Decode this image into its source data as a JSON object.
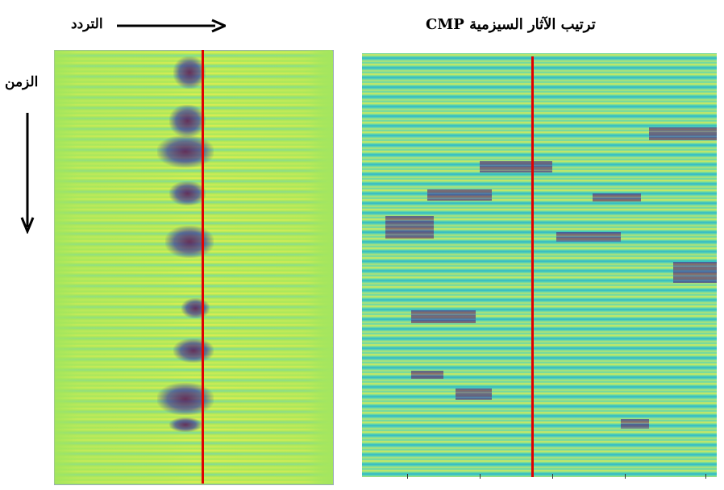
{
  "labels": {
    "frequency": "التردد",
    "cmp_title": "ترتيب الآثار السيزمية CMP",
    "time": "الزمن"
  }
}
